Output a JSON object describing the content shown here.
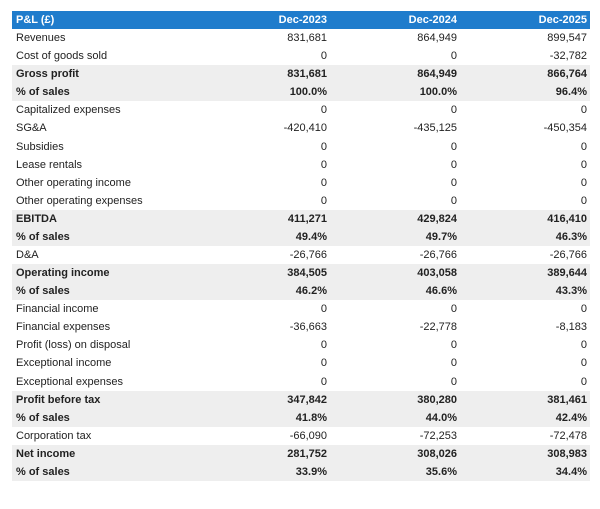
{
  "table": {
    "header": [
      "P&L (£)",
      "Dec-2023",
      "Dec-2024",
      "Dec-2025"
    ],
    "rows": [
      {
        "label": "Revenues",
        "values": [
          "831,681",
          "864,949",
          "899,547"
        ]
      },
      {
        "label": "Cost of goods sold",
        "values": [
          "0",
          "0",
          "-32,782"
        ]
      },
      {
        "label": "Gross profit",
        "values": [
          "831,681",
          "864,949",
          "866,764"
        ],
        "bold": true
      },
      {
        "label": "% of sales",
        "values": [
          "100.0%",
          "100.0%",
          "96.4%"
        ],
        "bold": true
      },
      {
        "label": "Capitalized expenses",
        "values": [
          "0",
          "0",
          "0"
        ]
      },
      {
        "label": "SG&A",
        "values": [
          "-420,410",
          "-435,125",
          "-450,354"
        ]
      },
      {
        "label": "Subsidies",
        "values": [
          "0",
          "0",
          "0"
        ]
      },
      {
        "label": "Lease rentals",
        "values": [
          "0",
          "0",
          "0"
        ]
      },
      {
        "label": "Other operating income",
        "values": [
          "0",
          "0",
          "0"
        ]
      },
      {
        "label": "Other operating expenses",
        "values": [
          "0",
          "0",
          "0"
        ]
      },
      {
        "label": "EBITDA",
        "values": [
          "411,271",
          "429,824",
          "416,410"
        ],
        "bold": true
      },
      {
        "label": "% of sales",
        "values": [
          "49.4%",
          "49.7%",
          "46.3%"
        ],
        "bold": true
      },
      {
        "label": "D&A",
        "values": [
          "-26,766",
          "-26,766",
          "-26,766"
        ]
      },
      {
        "label": "Operating income",
        "values": [
          "384,505",
          "403,058",
          "389,644"
        ],
        "bold": true
      },
      {
        "label": "% of sales",
        "values": [
          "46.2%",
          "46.6%",
          "43.3%"
        ],
        "bold": true
      },
      {
        "label": "Financial income",
        "values": [
          "0",
          "0",
          "0"
        ]
      },
      {
        "label": "Financial expenses",
        "values": [
          "-36,663",
          "-22,778",
          "-8,183"
        ]
      },
      {
        "label": "Profit (loss) on disposal",
        "values": [
          "0",
          "0",
          "0"
        ]
      },
      {
        "label": "Exceptional income",
        "values": [
          "0",
          "0",
          "0"
        ]
      },
      {
        "label": "Exceptional expenses",
        "values": [
          "0",
          "0",
          "0"
        ]
      },
      {
        "label": "Profit before tax",
        "values": [
          "347,842",
          "380,280",
          "381,461"
        ],
        "bold": true
      },
      {
        "label": "% of sales",
        "values": [
          "41.8%",
          "44.0%",
          "42.4%"
        ],
        "bold": true
      },
      {
        "label": "Corporation tax",
        "values": [
          "-66,090",
          "-72,253",
          "-72,478"
        ]
      },
      {
        "label": "Net income",
        "values": [
          "281,752",
          "308,026",
          "308,983"
        ],
        "bold": true
      },
      {
        "label": "% of sales",
        "values": [
          "33.9%",
          "35.6%",
          "34.4%"
        ],
        "bold": true
      }
    ]
  }
}
